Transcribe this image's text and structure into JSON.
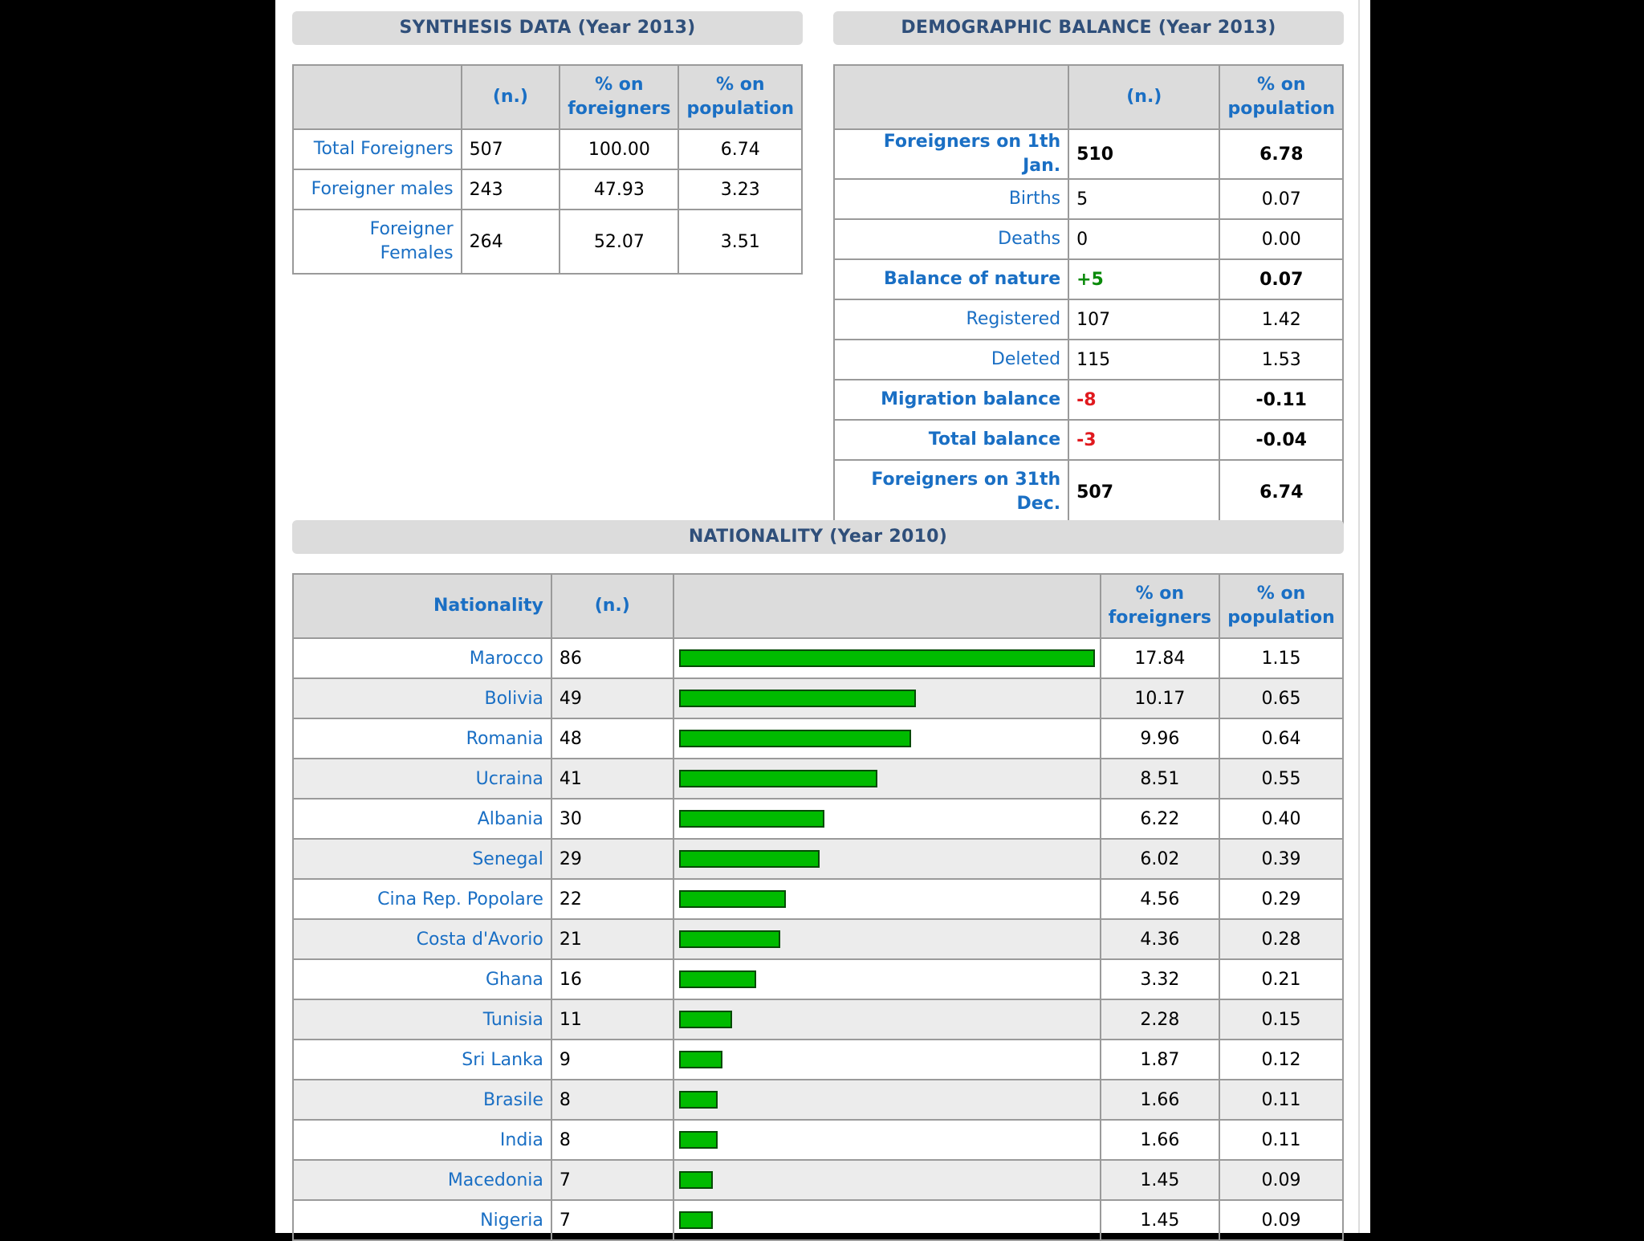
{
  "synthesis": {
    "title": "SYNTHESIS DATA (Year 2013)",
    "headers": [
      "",
      "(n.)",
      "% on foreigners",
      "% on population"
    ],
    "rows": [
      {
        "label": "Total Foreigners",
        "n": "507",
        "pct_foreigners": "100.00",
        "pct_population": "6.74"
      },
      {
        "label": "Foreigner males",
        "n": "243",
        "pct_foreigners": "47.93",
        "pct_population": "3.23"
      },
      {
        "label": "Foreigner Females",
        "n": "264",
        "pct_foreigners": "52.07",
        "pct_population": "3.51"
      }
    ]
  },
  "demographic": {
    "title": "DEMOGRAPHIC BALANCE (Year 2013)",
    "headers": [
      "",
      "(n.)",
      "% on population"
    ],
    "rows": [
      {
        "label": "Foreigners on 1th Jan.",
        "n": "510",
        "pct_population": "6.78",
        "bold": true,
        "sign": ""
      },
      {
        "label": "Births",
        "n": "5",
        "pct_population": "0.07",
        "bold": false,
        "sign": ""
      },
      {
        "label": "Deaths",
        "n": "0",
        "pct_population": "0.00",
        "bold": false,
        "sign": ""
      },
      {
        "label": "Balance of nature",
        "n": "+5",
        "pct_population": "0.07",
        "bold": true,
        "sign": "pos"
      },
      {
        "label": "Registered",
        "n": "107",
        "pct_population": "1.42",
        "bold": false,
        "sign": ""
      },
      {
        "label": "Deleted",
        "n": "115",
        "pct_population": "1.53",
        "bold": false,
        "sign": ""
      },
      {
        "label": "Migration balance",
        "n": "-8",
        "pct_population": "-0.11",
        "bold": true,
        "sign": "neg"
      },
      {
        "label": "Total balance",
        "n": "-3",
        "pct_population": "-0.04",
        "bold": true,
        "sign": "neg"
      },
      {
        "label": "Foreigners on 31th Dec.",
        "n": "507",
        "pct_population": "6.74",
        "bold": true,
        "sign": ""
      }
    ]
  },
  "nationality": {
    "title": "NATIONALITY (Year 2010)",
    "headers": [
      "Nationality",
      "(n.)",
      "",
      "% on foreigners",
      "% on population"
    ],
    "bar_color": "#00bb00",
    "rows": [
      {
        "label": "Marocco",
        "n": "86",
        "pct_foreigners": "17.84",
        "pct_population": "1.15"
      },
      {
        "label": "Bolivia",
        "n": "49",
        "pct_foreigners": "10.17",
        "pct_population": "0.65"
      },
      {
        "label": "Romania",
        "n": "48",
        "pct_foreigners": "9.96",
        "pct_population": "0.64"
      },
      {
        "label": "Ucraina",
        "n": "41",
        "pct_foreigners": "8.51",
        "pct_population": "0.55"
      },
      {
        "label": "Albania",
        "n": "30",
        "pct_foreigners": "6.22",
        "pct_population": "0.40"
      },
      {
        "label": "Senegal",
        "n": "29",
        "pct_foreigners": "6.02",
        "pct_population": "0.39"
      },
      {
        "label": "Cina Rep. Popolare",
        "n": "22",
        "pct_foreigners": "4.56",
        "pct_population": "0.29"
      },
      {
        "label": "Costa d'Avorio",
        "n": "21",
        "pct_foreigners": "4.36",
        "pct_population": "0.28"
      },
      {
        "label": "Ghana",
        "n": "16",
        "pct_foreigners": "3.32",
        "pct_population": "0.21"
      },
      {
        "label": "Tunisia",
        "n": "11",
        "pct_foreigners": "2.28",
        "pct_population": "0.15"
      },
      {
        "label": "Sri Lanka",
        "n": "9",
        "pct_foreigners": "1.87",
        "pct_population": "0.12"
      },
      {
        "label": "Brasile",
        "n": "8",
        "pct_foreigners": "1.66",
        "pct_population": "0.11"
      },
      {
        "label": "India",
        "n": "8",
        "pct_foreigners": "1.66",
        "pct_population": "0.11"
      },
      {
        "label": "Macedonia",
        "n": "7",
        "pct_foreigners": "1.45",
        "pct_population": "0.09"
      },
      {
        "label": "Nigeria",
        "n": "7",
        "pct_foreigners": "1.45",
        "pct_population": "0.09"
      }
    ]
  }
}
